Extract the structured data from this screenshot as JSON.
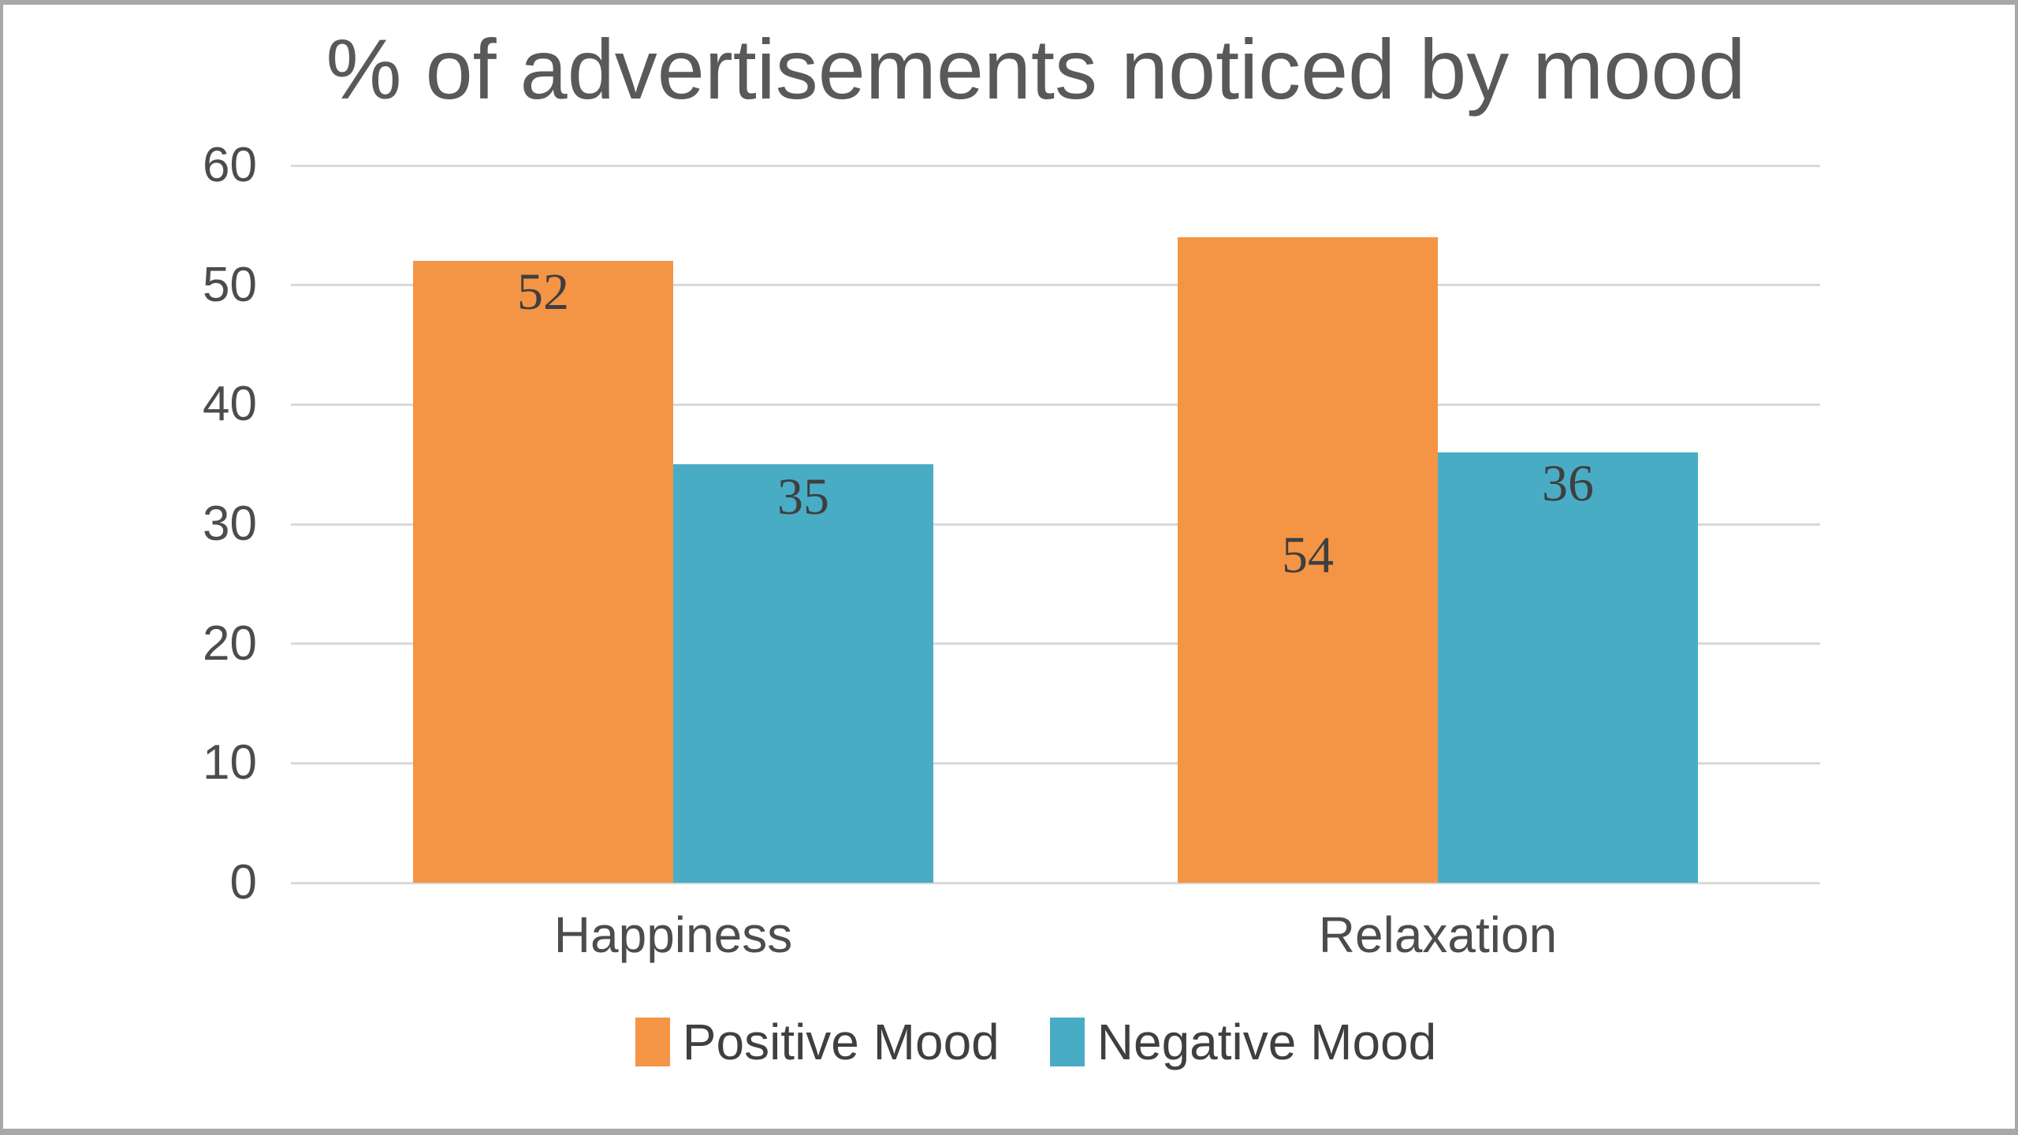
{
  "frame": {
    "border_color": "#a8a8a8",
    "background": "#ffffff"
  },
  "chart_data": {
    "type": "bar",
    "title": "% of advertisements noticed by mood",
    "title_color": "#595959",
    "categories": [
      "Happiness",
      "Relaxation"
    ],
    "series": [
      {
        "name": "Positive Mood",
        "color": "#f49546",
        "values": [
          52,
          54
        ],
        "data_labels": [
          "52",
          "54"
        ],
        "label_dy": [
          40,
          404
        ]
      },
      {
        "name": "Negative Mood",
        "color": "#49acc5",
        "values": [
          35,
          36
        ],
        "data_labels": [
          "35",
          "36"
        ],
        "label_dy": [
          42,
          40
        ]
      }
    ],
    "y_axis": {
      "min": 0,
      "max": 60,
      "tick_step": 10,
      "ticks": [
        0,
        10,
        20,
        30,
        40,
        50,
        60
      ],
      "tick_color": "#4c4c4c"
    },
    "gridlines": {
      "show": true,
      "color": "#d9d9d9"
    },
    "data_label_color": "#3f3f3f",
    "category_label_color": "#4c4c4c",
    "legend": {
      "position": "bottom",
      "text_color": "#3f3f3f"
    }
  }
}
